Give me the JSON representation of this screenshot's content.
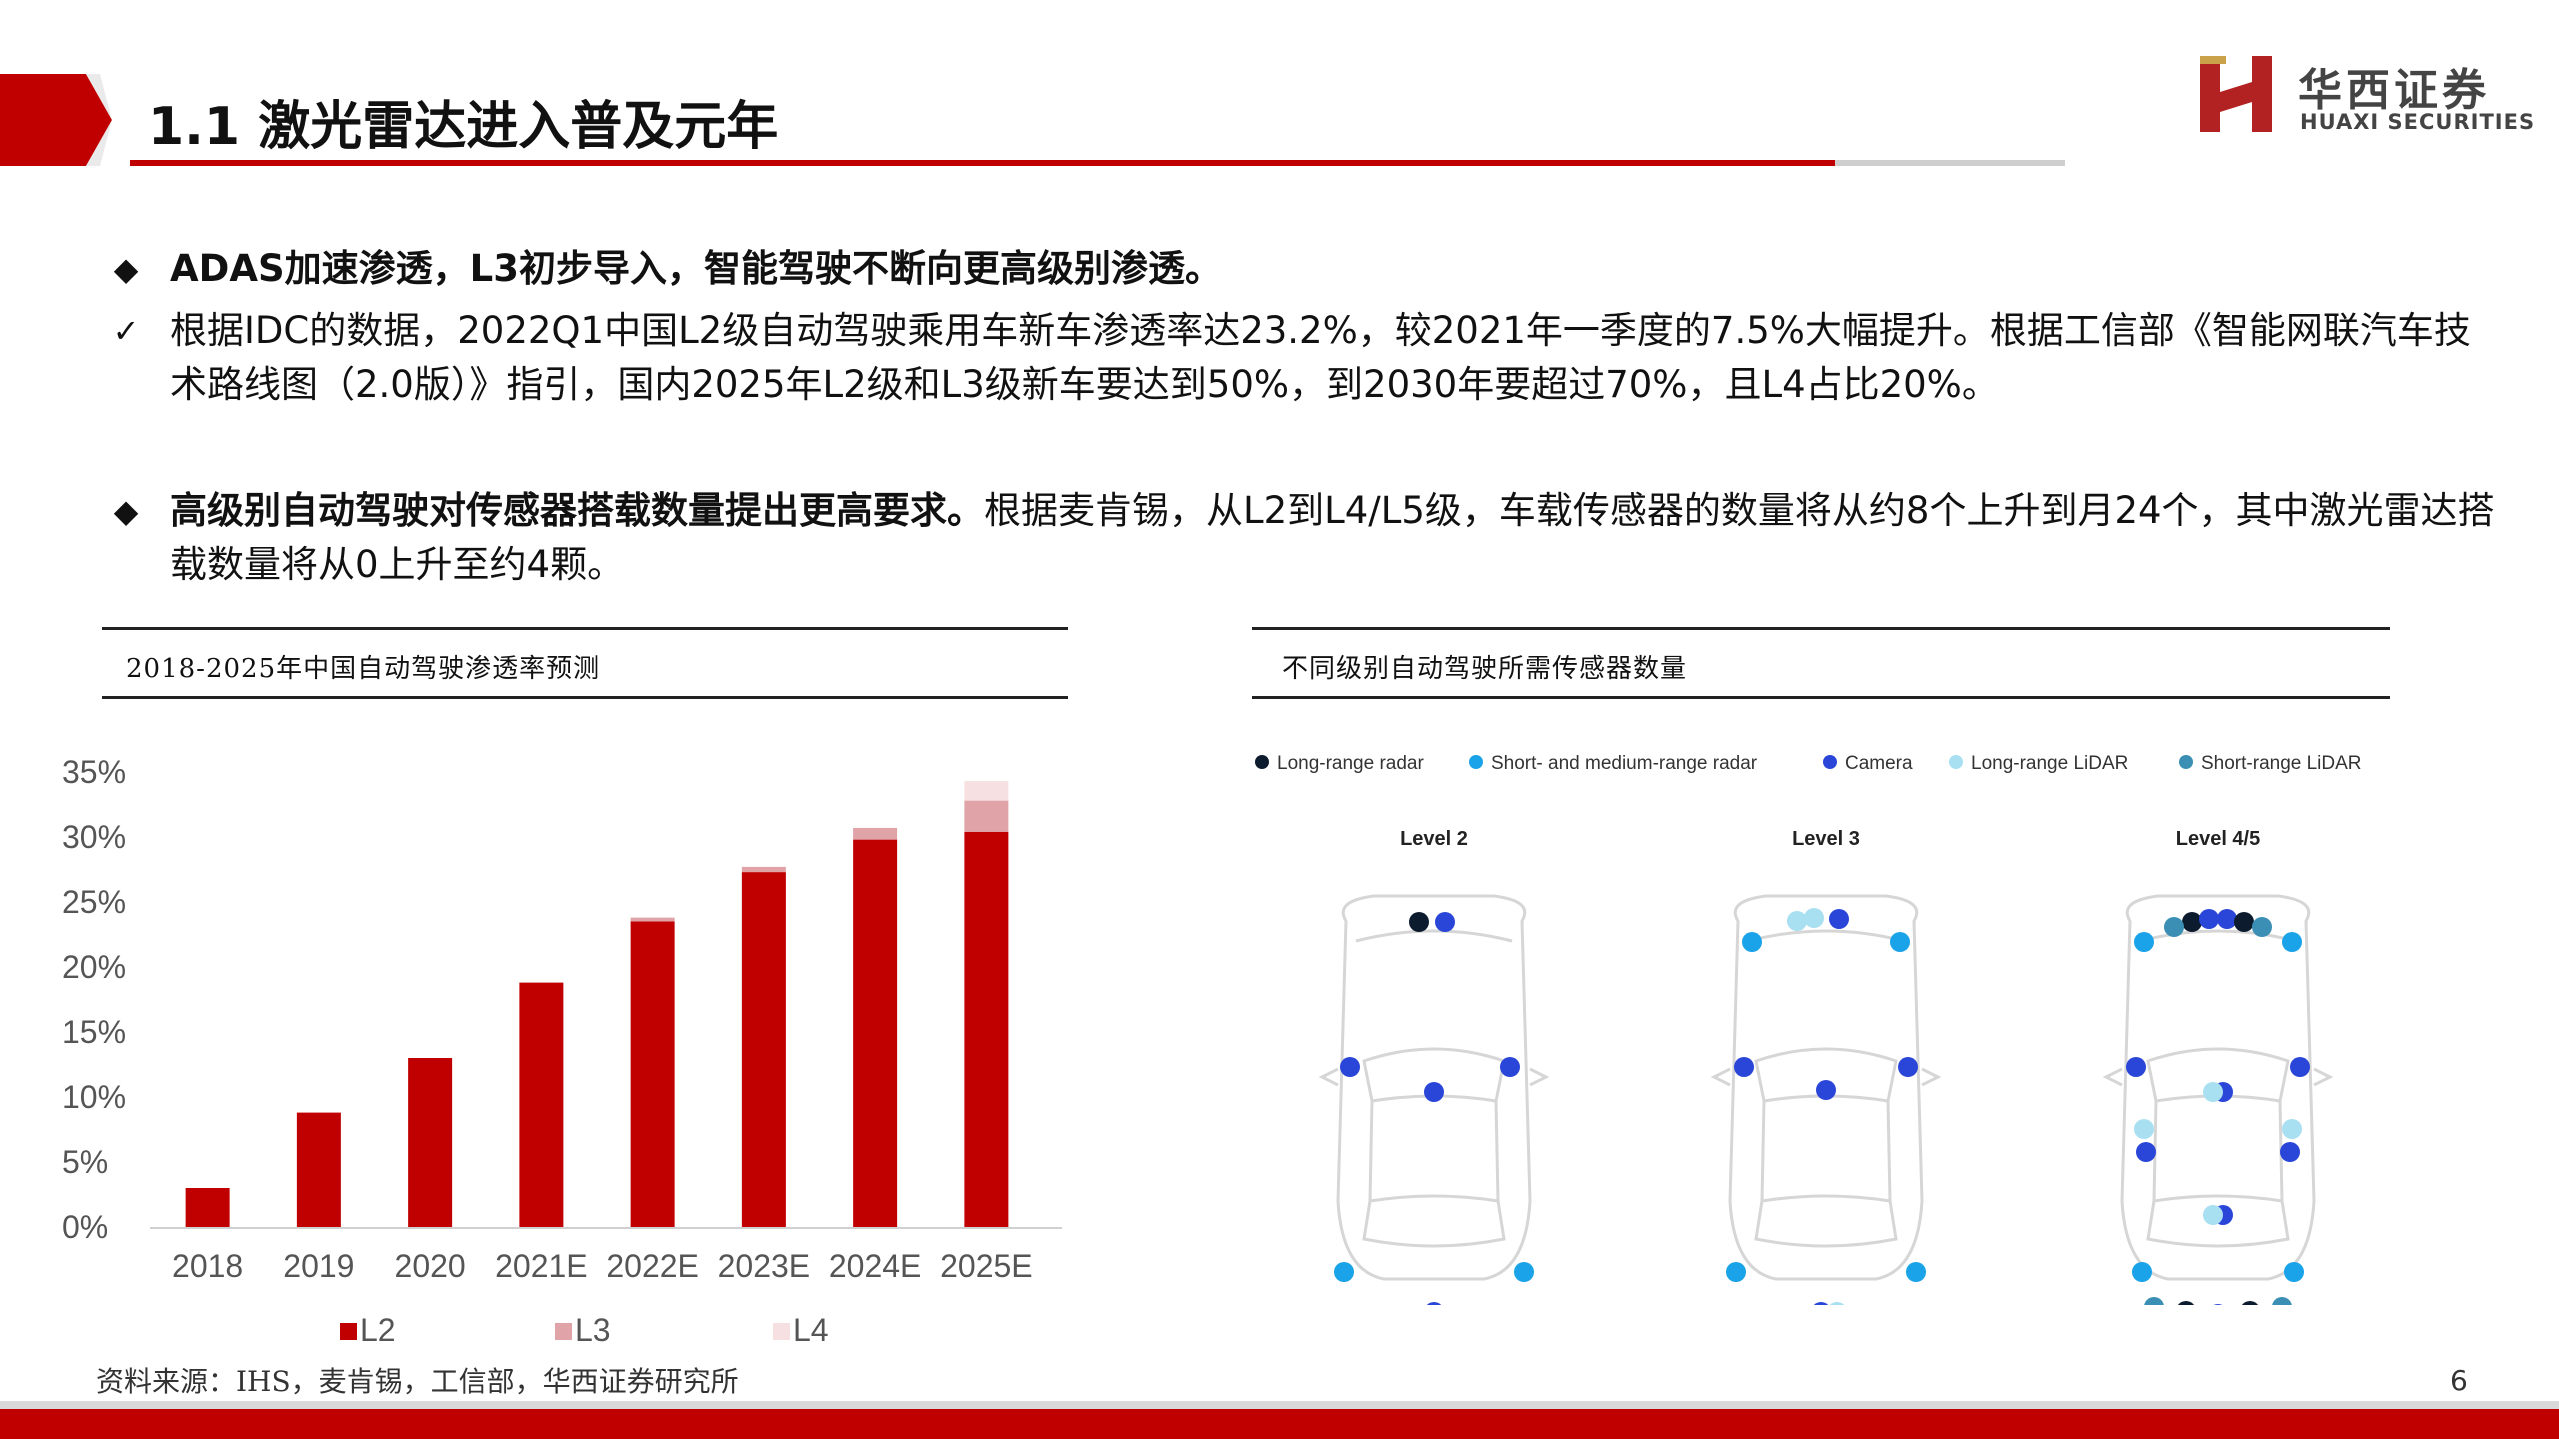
{
  "header": {
    "title": "1.1 激光雷达进入普及元年",
    "logo_cn": "华西证券",
    "logo_en": "HUAXI SECURITIES"
  },
  "bullets": [
    {
      "symbol": "◆",
      "bold": "ADAS加速渗透，L3初步导入，智能驾驶不断向更高级别渗透。",
      "text": ""
    },
    {
      "symbol": "✓",
      "bold": "",
      "text": "根据IDC的数据，2022Q1中国L2级自动驾驶乘用车新车渗透率达23.2%，较2021年一季度的7.5%大幅提升。根据工信部《智能网联汽车技术路线图（2.0版）》指引，国内2025年L2级和L3级新车要达到50%，到2030年要超过70%，且L4占比20%。"
    },
    {
      "symbol": "◆",
      "bold": "高级别自动驾驶对传感器搭载数量提出更高要求。",
      "text": "根据麦肯锡，从L2到L4/L5级，车载传感器的数量将从约8个上升到月24个，其中激光雷达搭载数量将从0上升至约4颗。"
    }
  ],
  "left_panel": {
    "title": "2018-2025年中国自动驾驶渗透率预测"
  },
  "right_panel": {
    "title": "不同级别自动驾驶所需传感器数量",
    "legend": [
      {
        "name": "Long-range radar",
        "color": "#0d1b2e"
      },
      {
        "name": "Short- and medium-range radar",
        "color": "#1aa3e8"
      },
      {
        "name": "Camera",
        "color": "#2a46d8"
      },
      {
        "name": "Long-range LiDAR",
        "color": "#a8e0f2"
      },
      {
        "name": "Short-range LiDAR",
        "color": "#3b8fb5"
      }
    ],
    "levels": [
      "Level 2",
      "Level 3",
      "Level 4/5"
    ]
  },
  "chart_data": {
    "type": "bar",
    "stacked": true,
    "categories": [
      "2018",
      "2019",
      "2020",
      "2021E",
      "2022E",
      "2023E",
      "2024E",
      "2025E"
    ],
    "series": [
      {
        "name": "L2",
        "color": "#c00000",
        "values": [
          3.0,
          8.8,
          13.0,
          18.8,
          23.5,
          27.3,
          29.8,
          30.4
        ]
      },
      {
        "name": "L3",
        "color": "#e0a3a8",
        "values": [
          0,
          0,
          0,
          0,
          0.3,
          0.4,
          0.9,
          2.4
        ]
      },
      {
        "name": "L4",
        "color": "#f6e0e2",
        "values": [
          0,
          0,
          0,
          0,
          0,
          0,
          0,
          1.5
        ]
      }
    ],
    "ylim": [
      0,
      35
    ],
    "yticks": [
      "0%",
      "5%",
      "10%",
      "15%",
      "20%",
      "25%",
      "30%",
      "35%"
    ],
    "legend_position": "bottom"
  },
  "footer": {
    "source": "资料来源：IHS，麦肯锡，工信部，华西证券研究所",
    "page": "6"
  }
}
